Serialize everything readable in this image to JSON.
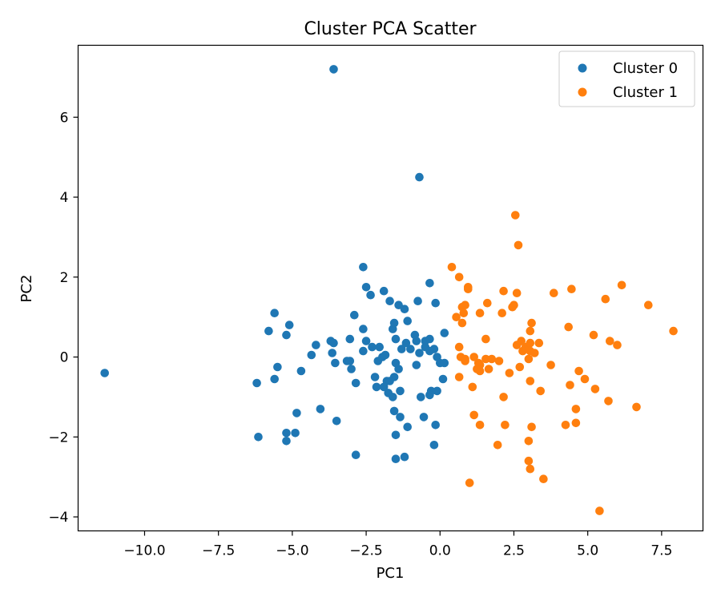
{
  "chart_data": {
    "type": "scatter",
    "title": "Cluster PCA Scatter",
    "xlabel": "PC1",
    "ylabel": "PC2",
    "xlim": [
      -12.25,
      8.9
    ],
    "ylim": [
      -4.35,
      7.8
    ],
    "xticks": [
      -10.0,
      -7.5,
      -5.0,
      -2.5,
      0.0,
      2.5,
      5.0,
      7.5
    ],
    "xtick_labels": [
      "−10.0",
      "−7.5",
      "−5.0",
      "−2.5",
      "0.0",
      "2.5",
      "5.0",
      "7.5"
    ],
    "yticks": [
      -4,
      -2,
      0,
      2,
      4,
      6
    ],
    "ytick_labels": [
      "−4",
      "−2",
      "0",
      "2",
      "4",
      "6"
    ],
    "grid": false,
    "legend_position": "top-right",
    "series": [
      {
        "name": "Cluster 0",
        "color": "#1f77b4",
        "points": [
          [
            -11.35,
            -0.4
          ],
          [
            -3.6,
            7.2
          ],
          [
            -0.7,
            4.5
          ],
          [
            -2.6,
            2.25
          ],
          [
            -0.35,
            1.85
          ],
          [
            -2.5,
            1.75
          ],
          [
            -2.35,
            1.55
          ],
          [
            -1.9,
            1.65
          ],
          [
            -1.7,
            1.4
          ],
          [
            -1.4,
            1.3
          ],
          [
            -1.2,
            1.2
          ],
          [
            -0.75,
            1.4
          ],
          [
            -0.15,
            1.35
          ],
          [
            -1.1,
            0.9
          ],
          [
            -2.9,
            1.05
          ],
          [
            -5.6,
            1.1
          ],
          [
            -5.8,
            0.65
          ],
          [
            -5.2,
            0.55
          ],
          [
            -5.1,
            0.8
          ],
          [
            -4.2,
            0.3
          ],
          [
            -3.7,
            0.4
          ],
          [
            -3.6,
            0.35
          ],
          [
            -4.35,
            0.05
          ],
          [
            -3.65,
            0.1
          ],
          [
            -3.55,
            -0.15
          ],
          [
            -3.05,
            0.45
          ],
          [
            -2.6,
            0.7
          ],
          [
            -2.5,
            0.4
          ],
          [
            -2.6,
            0.15
          ],
          [
            -2.3,
            0.25
          ],
          [
            -2.05,
            0.25
          ],
          [
            -1.95,
            0.0
          ],
          [
            -1.85,
            0.05
          ],
          [
            -1.6,
            0.7
          ],
          [
            -1.55,
            0.85
          ],
          [
            -1.5,
            0.45
          ],
          [
            -1.3,
            0.2
          ],
          [
            -1.15,
            0.35
          ],
          [
            -1.0,
            0.2
          ],
          [
            -0.85,
            0.55
          ],
          [
            -0.8,
            0.4
          ],
          [
            -0.7,
            0.1
          ],
          [
            -0.5,
            0.4
          ],
          [
            -0.35,
            0.45
          ],
          [
            -0.2,
            0.2
          ],
          [
            -0.5,
            0.25
          ],
          [
            -0.35,
            0.15
          ],
          [
            -0.1,
            0.0
          ],
          [
            0.0,
            -0.15
          ],
          [
            0.15,
            -0.15
          ],
          [
            0.15,
            0.6
          ],
          [
            -0.8,
            -0.2
          ],
          [
            -1.4,
            -0.3
          ],
          [
            -1.5,
            -0.15
          ],
          [
            -1.8,
            -0.6
          ],
          [
            -2.2,
            -0.5
          ],
          [
            -2.15,
            -0.75
          ],
          [
            -1.9,
            -0.75
          ],
          [
            -1.75,
            -0.9
          ],
          [
            -1.55,
            -0.5
          ],
          [
            -1.7,
            -0.6
          ],
          [
            -1.35,
            -0.85
          ],
          [
            -0.3,
            -0.85
          ],
          [
            -0.35,
            -0.95
          ],
          [
            -0.1,
            -0.85
          ],
          [
            0.1,
            -0.55
          ],
          [
            -0.65,
            -1.0
          ],
          [
            -2.85,
            -0.65
          ],
          [
            -3.0,
            -0.3
          ],
          [
            -3.15,
            -0.1
          ],
          [
            -3.05,
            -0.1
          ],
          [
            -6.2,
            -0.65
          ],
          [
            -5.6,
            -0.55
          ],
          [
            -5.5,
            -0.25
          ],
          [
            -4.7,
            -0.35
          ],
          [
            -4.85,
            -1.4
          ],
          [
            -4.05,
            -1.3
          ],
          [
            -3.5,
            -1.6
          ],
          [
            -5.2,
            -1.9
          ],
          [
            -5.2,
            -2.1
          ],
          [
            -4.9,
            -1.9
          ],
          [
            -6.15,
            -2.0
          ],
          [
            -2.85,
            -2.45
          ],
          [
            -1.55,
            -1.35
          ],
          [
            -1.35,
            -1.5
          ],
          [
            -1.5,
            -1.95
          ],
          [
            -1.1,
            -1.75
          ],
          [
            -0.55,
            -1.5
          ],
          [
            -0.15,
            -1.7
          ],
          [
            -0.2,
            -2.2
          ],
          [
            -1.5,
            -2.55
          ],
          [
            -1.2,
            -2.5
          ],
          [
            -1.6,
            -1.0
          ],
          [
            -2.1,
            -0.1
          ]
        ]
      },
      {
        "name": "Cluster 1",
        "color": "#ff7f0e",
        "points": [
          [
            2.55,
            3.55
          ],
          [
            2.65,
            2.8
          ],
          [
            0.4,
            2.25
          ],
          [
            0.65,
            2.0
          ],
          [
            0.95,
            1.75
          ],
          [
            0.95,
            1.7
          ],
          [
            2.15,
            1.65
          ],
          [
            2.6,
            1.6
          ],
          [
            3.85,
            1.6
          ],
          [
            4.45,
            1.7
          ],
          [
            6.15,
            1.8
          ],
          [
            5.6,
            1.45
          ],
          [
            7.05,
            1.3
          ],
          [
            7.9,
            0.65
          ],
          [
            0.75,
            1.25
          ],
          [
            0.85,
            1.3
          ],
          [
            0.8,
            1.1
          ],
          [
            1.35,
            1.1
          ],
          [
            1.6,
            1.35
          ],
          [
            2.1,
            1.1
          ],
          [
            2.45,
            1.25
          ],
          [
            2.5,
            1.3
          ],
          [
            0.55,
            1.0
          ],
          [
            0.75,
            0.85
          ],
          [
            1.55,
            0.45
          ],
          [
            2.6,
            0.3
          ],
          [
            2.75,
            0.4
          ],
          [
            2.9,
            0.25
          ],
          [
            3.05,
            0.35
          ],
          [
            3.05,
            0.65
          ],
          [
            3.1,
            0.85
          ],
          [
            3.35,
            0.35
          ],
          [
            4.35,
            0.75
          ],
          [
            5.2,
            0.55
          ],
          [
            5.75,
            0.4
          ],
          [
            6.0,
            0.3
          ],
          [
            0.65,
            0.25
          ],
          [
            0.7,
            0.0
          ],
          [
            0.85,
            -0.05
          ],
          [
            0.85,
            -0.1
          ],
          [
            1.15,
            0.0
          ],
          [
            1.3,
            -0.15
          ],
          [
            1.35,
            -0.2
          ],
          [
            1.55,
            -0.05
          ],
          [
            1.75,
            -0.05
          ],
          [
            2.0,
            -0.1
          ],
          [
            2.8,
            0.15
          ],
          [
            3.05,
            0.15
          ],
          [
            3.2,
            0.1
          ],
          [
            3.0,
            -0.05
          ],
          [
            2.35,
            -0.4
          ],
          [
            2.7,
            -0.25
          ],
          [
            1.25,
            -0.3
          ],
          [
            1.35,
            -0.35
          ],
          [
            1.65,
            -0.3
          ],
          [
            0.65,
            -0.5
          ],
          [
            1.1,
            -0.75
          ],
          [
            3.05,
            -0.6
          ],
          [
            3.4,
            -0.85
          ],
          [
            3.75,
            -0.2
          ],
          [
            4.4,
            -0.7
          ],
          [
            4.7,
            -0.35
          ],
          [
            4.9,
            -0.55
          ],
          [
            5.25,
            -0.8
          ],
          [
            5.7,
            -1.1
          ],
          [
            6.65,
            -1.25
          ],
          [
            2.15,
            -1.0
          ],
          [
            4.6,
            -1.3
          ],
          [
            4.25,
            -1.7
          ],
          [
            4.6,
            -1.65
          ],
          [
            3.1,
            -1.75
          ],
          [
            2.2,
            -1.7
          ],
          [
            1.35,
            -1.7
          ],
          [
            1.15,
            -1.45
          ],
          [
            1.95,
            -2.2
          ],
          [
            3.0,
            -2.1
          ],
          [
            3.0,
            -2.6
          ],
          [
            3.05,
            -2.8
          ],
          [
            3.5,
            -3.05
          ],
          [
            1.0,
            -3.15
          ],
          [
            5.4,
            -3.85
          ]
        ]
      }
    ]
  }
}
